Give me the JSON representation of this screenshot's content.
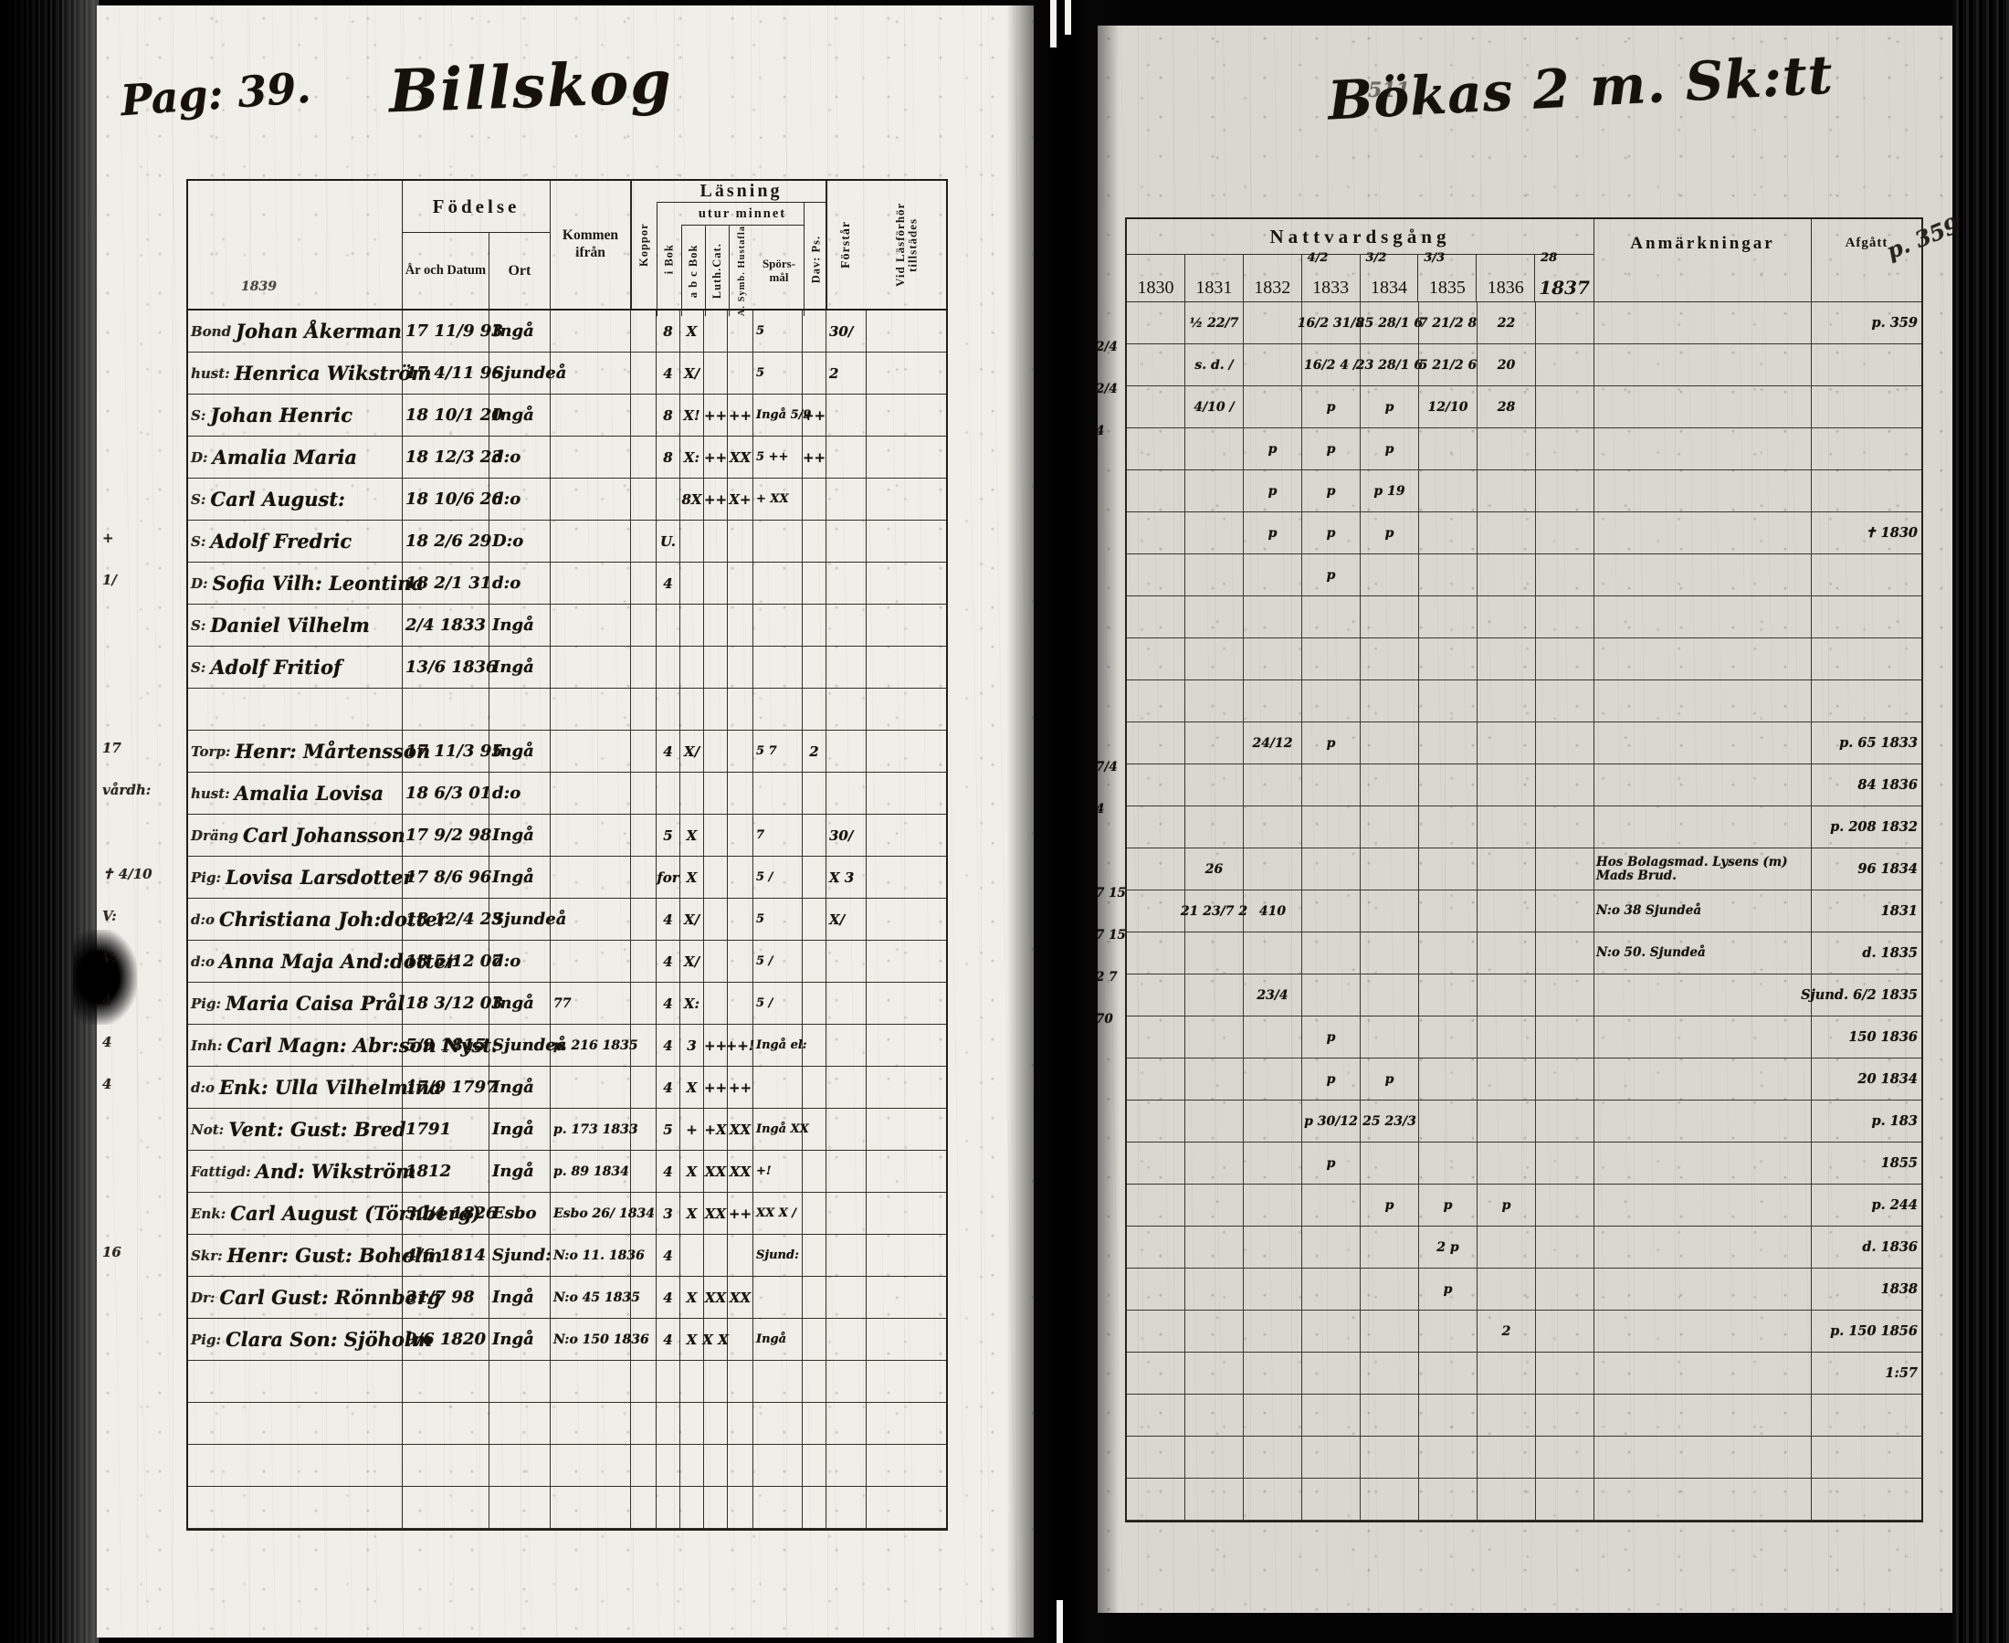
{
  "meta": {
    "page_label": "Pag: 39.",
    "left_title": "Billskog",
    "left_note": "1839",
    "right_title": "Bökas 2 m. Sk:tt",
    "right_corner": "511",
    "margin_afgatt_note": "p. 359"
  },
  "left_table": {
    "header": {
      "fodelse": "Födelse",
      "ar_och_datum": "År och Datum",
      "ort": "Ort",
      "kommen_ifran": "Kommen ifrån",
      "koppor": "Koppor",
      "lasning": "Läsning",
      "utur_minnet": "utur minnet",
      "i_bok": "i Bok",
      "minnet_cols": [
        "a b c Bok",
        "Luth.Cat.",
        "A. Symb. Hustafla",
        "Spörs-mål",
        "Dav: Ps."
      ],
      "forstar": "Förstår",
      "vid_lasforhor": "Vid Läsförhör tillstädes"
    },
    "rows": [
      {
        "p": "Bond",
        "name": "Johan Åkerman",
        "born": "17 11/9 93",
        "ort": "Ingå",
        "bok": "8",
        "abc": "X",
        "sp": "5",
        "forstar": "30/"
      },
      {
        "p": "hust:",
        "name": "Henrica Wikström",
        "born": "17 4/11 96",
        "ort": "Sjundeå",
        "bok": "4",
        "abc": "X/",
        "sp": "5",
        "forstar": "2"
      },
      {
        "p": "S:",
        "name": "Johan Henric",
        "born": "18 10/1 20",
        "ort": "Ingå",
        "bok": "8",
        "abc": "X!",
        "cat": "++",
        "symb": "++",
        "sp": "Ingå 5/9",
        "dav": "++"
      },
      {
        "p": "D:",
        "name": "Amalia Maria",
        "born": "18 12/3 23",
        "ort": "d:o",
        "bok": "8",
        "abc": "X:",
        "cat": "++",
        "symb": "XX",
        "sp": "5 ++",
        "dav": "++"
      },
      {
        "p": "S:",
        "name": "Carl August:",
        "born": "18 10/6 26",
        "ort": "d:o",
        "abc": "8X",
        "cat": "++",
        "symb": "X+",
        "sp": "+ XX"
      },
      {
        "m": "+",
        "p": "S:",
        "name": "Adolf Fredric",
        "born": "18 2/6 29",
        "ort": "D:o",
        "bok": "U."
      },
      {
        "m": "1/",
        "p": "D:",
        "name": "Sofia Vilh: Leontina",
        "born": "18 2/1 31",
        "ort": "d:o",
        "bok": "4"
      },
      {
        "p": "S:",
        "name": "Daniel Vilhelm",
        "born": "2/4 1833",
        "ort": "Ingå"
      },
      {
        "p": "S:",
        "name": "Adolf Fritiof",
        "born": "13/6 1836",
        "ort": "Ingå"
      },
      {},
      {
        "m": "17",
        "p": "Torp:",
        "name": "Henr: Mårtensson",
        "born": "17 11/3 95",
        "ort": "Ingå",
        "bok": "4",
        "abc": "X/",
        "sp": "5 7",
        "dav": "2"
      },
      {
        "m": "vårdh:",
        "p": "hust:",
        "name": "Amalia Lovisa",
        "born": "18 6/3 01",
        "ort": "d:o"
      },
      {
        "p": "Dräng",
        "name": "Carl Johansson",
        "born": "17 9/2 98",
        "ort": "Ingå",
        "bok": "5",
        "abc": "X",
        "sp": "7",
        "forstar": "30/"
      },
      {
        "m": "✝ 4/10",
        "p": "Pig:",
        "name": "Lovisa Larsdotter",
        "born": "17 8/6 96",
        "ort": "Ingå",
        "bok": "for",
        "abc": "X",
        "sp": "5 /",
        "forstar": "X 3"
      },
      {
        "m": "V:",
        "p": "d:o",
        "name": "Christiana Joh:dotter",
        "born": "18 12/4 23",
        "ort": "Sjundeå",
        "bok": "4",
        "abc": "X/",
        "sp": "5",
        "forstar": "X/"
      },
      {
        "m": "V:",
        "p": "d:o",
        "name": "Anna Maja And:dotter",
        "born": "18 5/12 07",
        "ort": "d:o",
        "bok": "4",
        "abc": "X/",
        "sp": "5 /"
      },
      {
        "m": "4",
        "p": "Pig:",
        "name": "Maria Caisa Prål",
        "born": "18 3/12 03",
        "ort": "Ingå",
        "kommen": "77",
        "bok": "4",
        "abc": "X:",
        "sp": "5 /"
      },
      {
        "m": "4",
        "p": "Inh:",
        "name": "Carl Magn: Abr:son Nyst:",
        "born": "5/9 1815",
        "ort": "Sjundeå",
        "kommen": "p. 216 1835",
        "bok": "4",
        "abc": "3",
        "cat": "++",
        "symb": "++!",
        "sp": "Ingå el:"
      },
      {
        "m": "4",
        "p": "d:o",
        "name": "Enk: Ulla Vilhelmina",
        "born": "17/9 1797",
        "ort": "Ingå",
        "bok": "4",
        "abc": "X",
        "cat": "++",
        "symb": "++"
      },
      {
        "p": "Not:",
        "name": "Vent: Gust: Bred",
        "born": "1791",
        "ort": "Ingå",
        "kommen": "p. 173 1833",
        "bok": "5",
        "abc": "+",
        "cat": "+X",
        "symb": "XX",
        "sp": "Ingå XX"
      },
      {
        "p": "Fattigd:",
        "name": "And: Wikström",
        "born": "1812",
        "ort": "Ingå",
        "kommen": "p. 89 1834",
        "bok": "4",
        "abc": "X",
        "cat": "XX",
        "symb": "XX",
        "sp": "+!"
      },
      {
        "p": "Enk:",
        "name": "Carl August (Törnberg)",
        "born": "30/4 1826",
        "ort": "Esbo",
        "kommen": "Esbo 26/ 1834",
        "bok": "3",
        "abc": "X",
        "cat": "XX",
        "symb": "++",
        "sp": "XX X /"
      },
      {
        "m": "16",
        "p": "Skr:",
        "name": "Henr: Gust: Boholm",
        "born": "4/6 1814",
        "ort": "Sjund:",
        "kommen": "N:o 11. 1836",
        "bok": "4",
        "sp": "Sjund:"
      },
      {
        "p": "Dr:",
        "name": "Carl Gust: Rönnberg",
        "born": "31/7 98",
        "ort": "Ingå",
        "kommen": "N:o 45 1835",
        "bok": "4",
        "abc": "X",
        "cat": "XX",
        "symb": "XX"
      },
      {
        "p": "Pig:",
        "name": "Clara Son: Sjöholm",
        "born": "9/6 1820",
        "ort": "Ingå",
        "kommen": "N:o 150 1836",
        "bok": "4",
        "abc": "X",
        "cat": "X X",
        "sp": "Ingå"
      },
      {},
      {},
      {},
      {}
    ]
  },
  "right_table": {
    "header": {
      "nattvardsgang": "Nattvardsgång",
      "years": [
        "1830",
        "1831",
        "1832",
        "1833",
        "1834",
        "1835",
        "1836",
        "1837"
      ],
      "year_notes": [
        "",
        "",
        "",
        "4/2",
        "3/2",
        "3/3",
        "",
        "28"
      ],
      "anmarkningar": "Anmärkningar",
      "afgatt": "Afgått"
    },
    "rows": [
      {
        "m": "2/4",
        "c": {
          "1": "½ 22/7",
          "3": "16/2 31/8",
          "4": "25 28/1 6",
          "5": "7 21/2 8",
          "6": "22"
        },
        "afg": "p. 359"
      },
      {
        "m": "2/4",
        "c": {
          "1": "s. d. /",
          "3": "16/2 4 /",
          "4": "23 28/1 6",
          "5": "5 21/2 6",
          "6": "20"
        }
      },
      {
        "m": "4",
        "c": {
          "1": "4/10 /",
          "3": "p",
          "4": "p",
          "5": "12/10",
          "6": "28"
        }
      },
      {
        "c": {
          "2": "p",
          "3": "p",
          "4": "p"
        }
      },
      {
        "c": {
          "2": "p",
          "3": "p",
          "4": "p 19"
        }
      },
      {
        "c": {
          "2": "p",
          "3": "p",
          "4": "p"
        },
        "afg": "✝ 1830"
      },
      {
        "c": {
          "3": "p"
        }
      },
      {},
      {},
      {},
      {
        "m": "7/4",
        "c": {
          "2": "24/12",
          "3": "p"
        },
        "afg": "p. 65 1833"
      },
      {
        "m": "4",
        "afg": "84 1836"
      },
      {
        "afg": "p. 208 1832"
      },
      {
        "m": "7 15",
        "c": {
          "1": "26"
        },
        "anm": "Hos Bolagsmad. Lysens (m) Mads Brud.",
        "afg": "96 1834"
      },
      {
        "m": "7 15",
        "c": {
          "1": "21 23/7 2",
          "2": "410"
        },
        "anm": "N:o 38 Sjundeå",
        "afg": "1831"
      },
      {
        "m": "2 7",
        "anm": "N:o 50. Sjundeå",
        "afg": "d. 1835"
      },
      {
        "m": "70",
        "c": {
          "2": "23/4"
        },
        "afg": "Sjund. 6/2 1835"
      },
      {
        "c": {
          "3": "p"
        },
        "afg": "150 1836"
      },
      {
        "c": {
          "3": "p",
          "4": "p"
        },
        "afg": "20 1834"
      },
      {
        "c": {
          "3": "p 30/12",
          "4": "25 23/3"
        },
        "afg": "p. 183"
      },
      {
        "c": {
          "3": "p"
        },
        "afg": "1855"
      },
      {
        "c": {
          "4": "p",
          "5": "p",
          "6": "p"
        },
        "afg": "p. 244"
      },
      {
        "c": {
          "5": "2 p"
        },
        "afg": "d. 1836"
      },
      {
        "c": {
          "5": "p"
        },
        "afg": "1838"
      },
      {
        "c": {
          "6": "2"
        },
        "afg": "p. 150 1856"
      },
      {
        "afg": "1:57"
      },
      {},
      {},
      {}
    ]
  }
}
